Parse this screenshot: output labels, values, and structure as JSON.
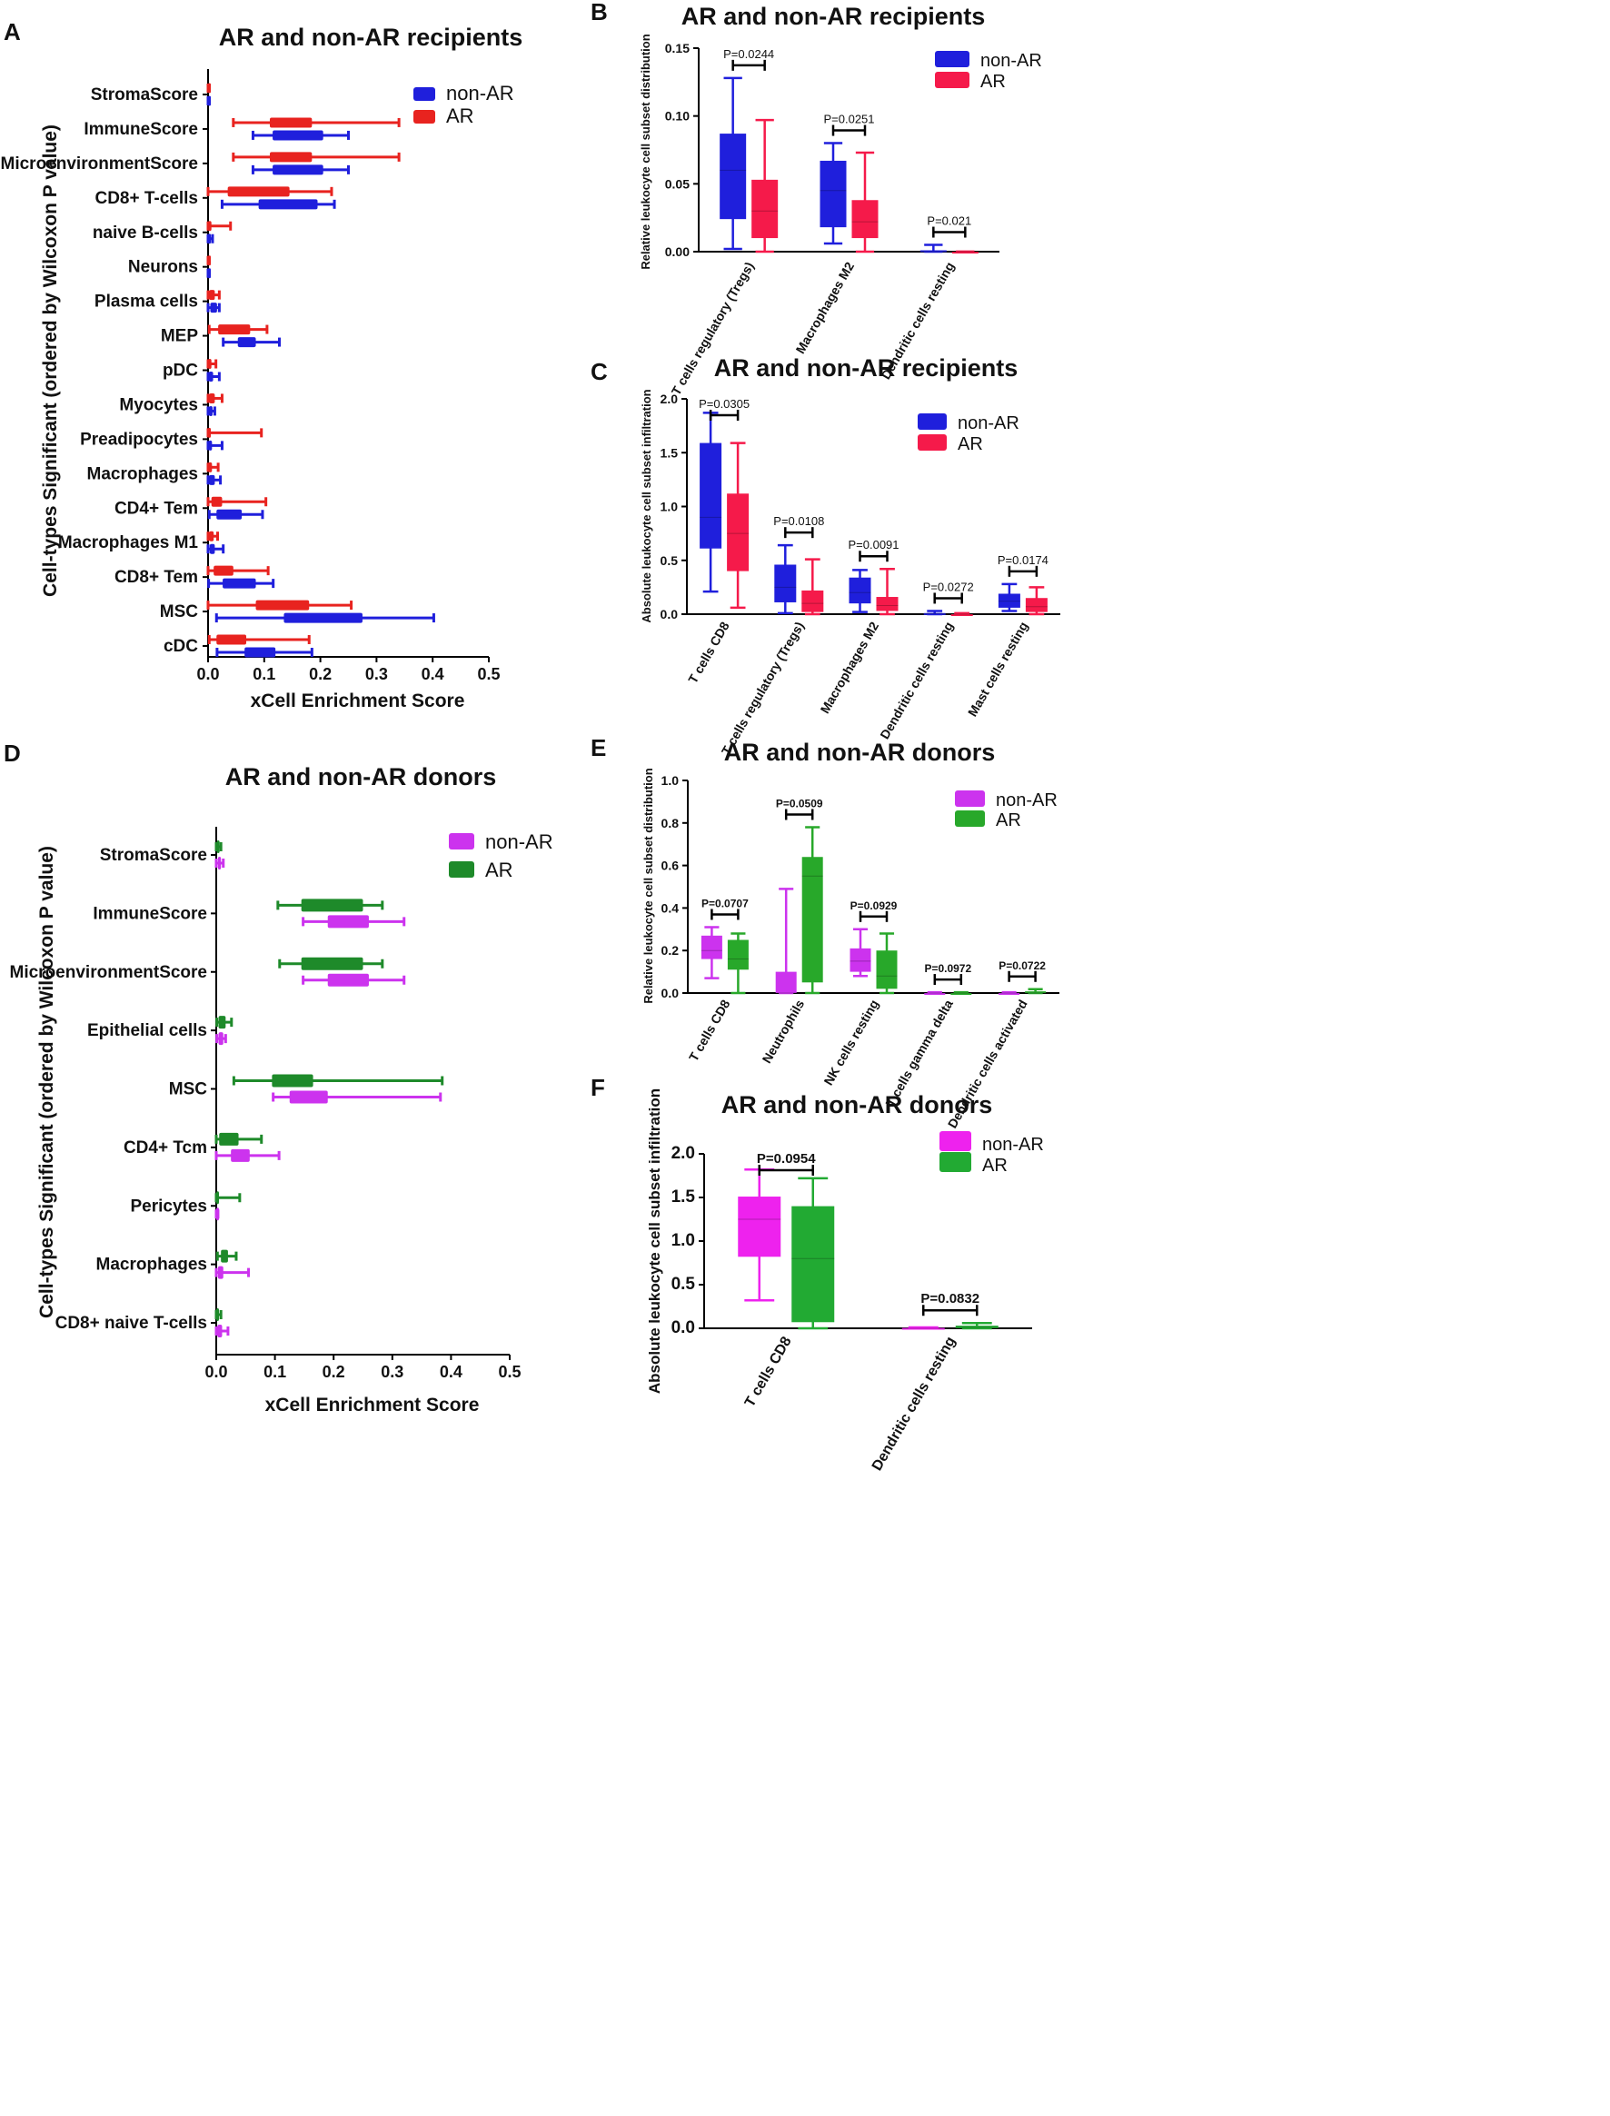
{
  "chart_data": [
    {
      "id": "A",
      "type": "horizontal-box",
      "title": "AR and non-AR recipients",
      "xlabel": "xCell Enrichment Score",
      "ylabel": "Cell-types Significant  (ordered by Wilcoxon P value)",
      "xticks": [
        "0.0",
        "0.1",
        "0.2",
        "0.3",
        "0.4",
        "0.5"
      ],
      "xlim": [
        0,
        0.5
      ],
      "legend": [
        {
          "name": "non-AR",
          "color": "#1f1fdc"
        },
        {
          "name": "AR",
          "color": "#e8231f"
        }
      ],
      "categories": [
        "StromaScore",
        "ImmuneScore",
        "MicroenvironmentScore",
        "CD8+ T-cells",
        "naive B-cells",
        "Neurons",
        "Plasma cells",
        "MEP",
        "pDC",
        "Myocytes",
        "Preadipocytes",
        "Macrophages",
        "CD4+ Tem",
        "Macrophages M1",
        "CD8+ Tem",
        "MSC",
        "cDC"
      ],
      "series": [
        {
          "name": "AR",
          "boxes": [
            [
              0,
              0,
              0,
              0.001,
              0.002
            ],
            [
              0.045,
              0.11,
              0.145,
              0.185,
              0.34
            ],
            [
              0.045,
              0.11,
              0.145,
              0.185,
              0.34
            ],
            [
              0,
              0.035,
              0.075,
              0.145,
              0.22
            ],
            [
              0,
              0,
              0.002,
              0.006,
              0.04
            ],
            [
              0,
              0,
              0,
              0.001,
              0.002
            ],
            [
              0,
              0.002,
              0.006,
              0.012,
              0.02
            ],
            [
              0.002,
              0.018,
              0.04,
              0.075,
              0.105
            ],
            [
              0,
              0,
              0.003,
              0.006,
              0.014
            ],
            [
              0,
              0.002,
              0.006,
              0.012,
              0.025
            ],
            [
              0,
              0,
              0.001,
              0.004,
              0.095
            ],
            [
              0,
              0,
              0.003,
              0.007,
              0.018
            ],
            [
              0,
              0.006,
              0.014,
              0.025,
              0.103
            ],
            [
              0,
              0.002,
              0.005,
              0.01,
              0.017
            ],
            [
              0,
              0.01,
              0.025,
              0.045,
              0.107
            ],
            [
              0,
              0.085,
              0.13,
              0.18,
              0.255
            ],
            [
              0.002,
              0.015,
              0.038,
              0.068,
              0.18
            ]
          ]
        },
        {
          "name": "non-AR",
          "boxes": [
            [
              0,
              0,
              0,
              0.001,
              0.002
            ],
            [
              0.08,
              0.115,
              0.155,
              0.205,
              0.25
            ],
            [
              0.08,
              0.115,
              0.155,
              0.205,
              0.25
            ],
            [
              0.025,
              0.09,
              0.14,
              0.195,
              0.225
            ],
            [
              0,
              0,
              0.002,
              0.005,
              0.008
            ],
            [
              0,
              0,
              0,
              0.001,
              0.002
            ],
            [
              0,
              0.004,
              0.009,
              0.016,
              0.02
            ],
            [
              0.027,
              0.053,
              0.065,
              0.085,
              0.127
            ],
            [
              0,
              0.001,
              0.004,
              0.009,
              0.02
            ],
            [
              0,
              0.002,
              0.005,
              0.008,
              0.012
            ],
            [
              0,
              0.001,
              0.003,
              0.007,
              0.025
            ],
            [
              0,
              0.002,
              0.006,
              0.012,
              0.022
            ],
            [
              0.002,
              0.015,
              0.035,
              0.06,
              0.097
            ],
            [
              0,
              0.003,
              0.007,
              0.012,
              0.027
            ],
            [
              0.001,
              0.026,
              0.05,
              0.085,
              0.116
            ],
            [
              0.015,
              0.135,
              0.2,
              0.275,
              0.402
            ],
            [
              0.016,
              0.065,
              0.09,
              0.12,
              0.185
            ]
          ]
        }
      ]
    },
    {
      "id": "B",
      "type": "box",
      "title": "AR and non-AR recipients",
      "ylabel": "Relative leukocyte cell subset distribution",
      "yticks": [
        "0.00",
        "0.05",
        "0.10",
        "0.15"
      ],
      "ylim": [
        0,
        0.15
      ],
      "legend": [
        {
          "name": "non-AR",
          "color": "#1f1fdc"
        },
        {
          "name": "AR",
          "color": "#f51a4a"
        }
      ],
      "categories": [
        "T cells regulatory (Tregs)",
        "Macrophages M2",
        "Dendritic cells resting"
      ],
      "series": [
        {
          "name": "non-AR",
          "boxes": [
            [
              0.002,
              0.024,
              0.06,
              0.087,
              0.128
            ],
            [
              0.006,
              0.018,
              0.045,
              0.067,
              0.08
            ],
            [
              0,
              0,
              0,
              0.001,
              0.005
            ]
          ]
        },
        {
          "name": "AR",
          "boxes": [
            [
              0,
              0.01,
              0.03,
              0.053,
              0.097
            ],
            [
              0,
              0.01,
              0.022,
              0.038,
              0.073
            ],
            [
              0,
              0,
              0,
              0,
              0
            ]
          ]
        }
      ],
      "pvalues": [
        "P=0.0244",
        "P=0.0251",
        "P=0.021"
      ]
    },
    {
      "id": "C",
      "type": "box",
      "title": "AR and non-AR recipients",
      "ylabel": "Absolute leukocyte cell subset infiltration",
      "yticks": [
        "0.0",
        "0.5",
        "1.0",
        "1.5",
        "2.0"
      ],
      "ylim": [
        0,
        2.0
      ],
      "legend": [
        {
          "name": "non-AR",
          "color": "#1f1fdc"
        },
        {
          "name": "AR",
          "color": "#f51a4a"
        }
      ],
      "categories": [
        "T cells CD8",
        "T cells regulatory (Tregs)",
        "Macrophages M2",
        "Dendritic cells resting",
        "Mast cells resting"
      ],
      "series": [
        {
          "name": "non-AR",
          "boxes": [
            [
              0.21,
              0.61,
              0.9,
              1.59,
              1.87
            ],
            [
              0.01,
              0.11,
              0.25,
              0.46,
              0.64
            ],
            [
              0.02,
              0.1,
              0.2,
              0.34,
              0.41
            ],
            [
              0,
              0,
              0.005,
              0.01,
              0.03
            ],
            [
              0.03,
              0.06,
              0.12,
              0.19,
              0.28
            ]
          ]
        },
        {
          "name": "AR",
          "boxes": [
            [
              0.06,
              0.4,
              0.75,
              1.12,
              1.59
            ],
            [
              0,
              0.02,
              0.1,
              0.22,
              0.51
            ],
            [
              0,
              0.03,
              0.08,
              0.16,
              0.42
            ],
            [
              0,
              0,
              0,
              0,
              0.01
            ],
            [
              0,
              0.02,
              0.07,
              0.15,
              0.25
            ]
          ]
        }
      ],
      "pvalues": [
        "P=0.0305",
        "P=0.0108",
        "P=0.0091",
        "P=0.0272",
        "P=0.0174"
      ]
    },
    {
      "id": "D",
      "type": "horizontal-box",
      "title": "AR and non-AR donors",
      "xlabel": "xCell Enrichment Score",
      "ylabel": "Cell-types Significant  (ordered by Wilcoxon P value)",
      "xticks": [
        "0.0",
        "0.1",
        "0.2",
        "0.3",
        "0.4",
        "0.5"
      ],
      "xlim": [
        0,
        0.5
      ],
      "legend": [
        {
          "name": "non-AR",
          "color": "#cc33ee"
        },
        {
          "name": "AR",
          "color": "#1e8a2a"
        }
      ],
      "categories": [
        "StromaScore",
        "ImmuneScore",
        "MicroenvironmentScore",
        "Epithelial cells",
        "MSC",
        "CD4+ Tcm",
        "Pericytes",
        "Macrophages",
        "CD8+ naive T-cells"
      ],
      "series": [
        {
          "name": "AR",
          "boxes": [
            [
              0,
              0.001,
              0.003,
              0.005,
              0.008
            ],
            [
              0.105,
              0.145,
              0.19,
              0.25,
              0.283
            ],
            [
              0.108,
              0.145,
              0.19,
              0.25,
              0.283
            ],
            [
              0.001,
              0.004,
              0.009,
              0.016,
              0.026
            ],
            [
              0.03,
              0.095,
              0.135,
              0.165,
              0.385
            ],
            [
              0,
              0.005,
              0.018,
              0.038,
              0.077
            ],
            [
              0,
              0,
              0.002,
              0.004,
              0.04
            ],
            [
              0.002,
              0.008,
              0.014,
              0.02,
              0.034
            ],
            [
              0,
              0,
              0.002,
              0.004,
              0.008
            ]
          ]
        },
        {
          "name": "non-AR",
          "boxes": [
            [
              0,
              0.003,
              0.006,
              0.008,
              0.012
            ],
            [
              0.148,
              0.19,
              0.225,
              0.26,
              0.32
            ],
            [
              0.148,
              0.19,
              0.225,
              0.26,
              0.32
            ],
            [
              0.001,
              0.004,
              0.008,
              0.012,
              0.016
            ],
            [
              0.097,
              0.125,
              0.16,
              0.19,
              0.382
            ],
            [
              0,
              0.025,
              0.04,
              0.057,
              0.107
            ],
            [
              0,
              0,
              0.001,
              0.002,
              0.003
            ],
            [
              0,
              0.003,
              0.008,
              0.012,
              0.055
            ],
            [
              0,
              0.002,
              0.006,
              0.01,
              0.02
            ]
          ]
        }
      ]
    },
    {
      "id": "E",
      "type": "box",
      "title": "AR and non-AR donors",
      "ylabel": "Relative leukocyte cell subset distribution",
      "yticks": [
        "0.0",
        "0.2",
        "0.4",
        "0.6",
        "0.8",
        "1.0"
      ],
      "ylim": [
        0,
        1.0
      ],
      "legend": [
        {
          "name": "non-AR",
          "color": "#cc33ee"
        },
        {
          "name": "AR",
          "color": "#28a82a"
        }
      ],
      "categories": [
        "T cells CD8",
        "Neutrophils",
        "NK cells resting",
        "T cells gamma delta",
        "Dendritic cells activated"
      ],
      "series": [
        {
          "name": "non-AR",
          "boxes": [
            [
              0.07,
              0.16,
              0.2,
              0.27,
              0.31
            ],
            [
              0,
              0,
              0,
              0.1,
              0.49
            ],
            [
              0.08,
              0.1,
              0.15,
              0.21,
              0.3
            ],
            [
              0,
              0,
              0,
              0,
              0.004
            ],
            [
              0,
              0,
              0,
              0,
              0.004
            ]
          ]
        },
        {
          "name": "AR",
          "boxes": [
            [
              0,
              0.11,
              0.16,
              0.25,
              0.28
            ],
            [
              0,
              0.05,
              0.55,
              0.64,
              0.78
            ],
            [
              0,
              0.02,
              0.08,
              0.2,
              0.28
            ],
            [
              0,
              0,
              0,
              0,
              0.004
            ],
            [
              0,
              0,
              0,
              0.008,
              0.018
            ]
          ]
        }
      ],
      "pvalues": [
        "P=0.0707",
        "P=0.0509",
        "P=0.0929",
        "P=0.0972",
        "P=0.0722"
      ]
    },
    {
      "id": "F",
      "type": "box",
      "title": "AR and non-AR donors",
      "ylabel": "Absolute leukocyte cell subset infiltration",
      "yticks": [
        "0.0",
        "0.5",
        "1.0",
        "1.5",
        "2.0"
      ],
      "ylim": [
        0,
        2.0
      ],
      "legend": [
        {
          "name": "non-AR",
          "color": "#ee22ee"
        },
        {
          "name": "AR",
          "color": "#22aa33"
        }
      ],
      "categories": [
        "T cells CD8",
        "Dendritic cells resting"
      ],
      "series": [
        {
          "name": "non-AR",
          "boxes": [
            [
              0.32,
              0.82,
              1.25,
              1.51,
              1.82
            ],
            [
              0,
              0,
              0,
              0.005,
              0.01
            ]
          ]
        },
        {
          "name": "AR",
          "boxes": [
            [
              0,
              0.07,
              0.8,
              1.4,
              1.72
            ],
            [
              0,
              0,
              0.01,
              0.03,
              0.06
            ]
          ]
        }
      ],
      "pvalues": [
        "P=0.0954",
        "P=0.0832"
      ]
    }
  ]
}
